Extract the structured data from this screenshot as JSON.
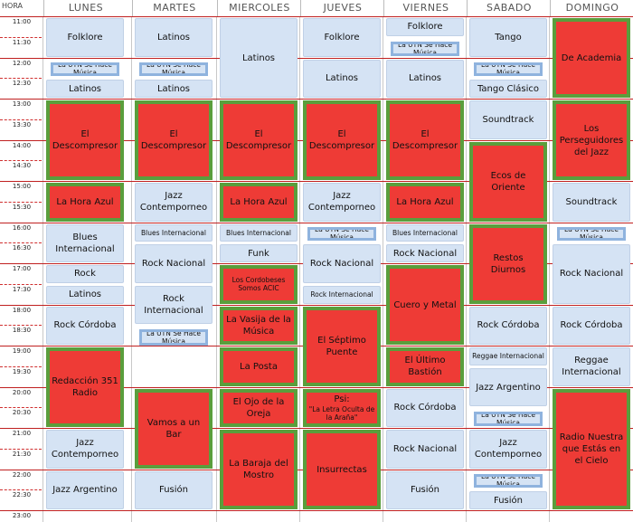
{
  "header": {
    "hora": "HORA",
    "days": [
      "LUNES",
      "MARTES",
      "MIERCOLES",
      "JUEVES",
      "VIERNES",
      "SABADO",
      "DOMINGO"
    ]
  },
  "times": [
    "11:00",
    "11:30",
    "12:00",
    "12:30",
    "13:00",
    "13:30",
    "14:00",
    "14:30",
    "15:00",
    "15:30",
    "16:00",
    "16:30",
    "17:00",
    "17:30",
    "18:00",
    "18:30",
    "19:00",
    "19:30",
    "20:00",
    "20:30",
    "21:00",
    "21:30",
    "22:00",
    "22:30",
    "23:00"
  ],
  "colors": {
    "show": "#d5e3f4",
    "feature": "#ee3b36",
    "frame": "#5a9e3c",
    "hour_line": "#c02020"
  },
  "programs": [
    {
      "day": 0,
      "start": 11.0,
      "end": 12.0,
      "label": "Folklore",
      "style": "blue"
    },
    {
      "day": 0,
      "start": 12.0,
      "end": 12.5,
      "label": "La UTN Se Hace Música",
      "style": "badge"
    },
    {
      "day": 0,
      "start": 12.5,
      "end": 13.0,
      "label": "Latinos",
      "style": "blue"
    },
    {
      "day": 0,
      "start": 13.0,
      "end": 15.0,
      "label": "El Descompresor",
      "style": "red"
    },
    {
      "day": 0,
      "start": 15.0,
      "end": 16.0,
      "label": "La Hora Azul",
      "style": "red"
    },
    {
      "day": 0,
      "start": 16.0,
      "end": 17.0,
      "label": "Blues Internacional",
      "style": "blue"
    },
    {
      "day": 0,
      "start": 17.0,
      "end": 17.5,
      "label": "Rock",
      "style": "blue"
    },
    {
      "day": 0,
      "start": 17.5,
      "end": 18.0,
      "label": "Latinos",
      "style": "blue"
    },
    {
      "day": 0,
      "start": 18.0,
      "end": 19.0,
      "label": "Rock Córdoba",
      "style": "blue"
    },
    {
      "day": 0,
      "start": 19.0,
      "end": 21.0,
      "label": "Redacción 351 Radio",
      "style": "red"
    },
    {
      "day": 0,
      "start": 21.0,
      "end": 22.0,
      "label": "Jazz Contemporneo",
      "style": "blue"
    },
    {
      "day": 0,
      "start": 22.0,
      "end": 23.0,
      "label": "Jazz Argentino",
      "style": "blue"
    },
    {
      "day": 1,
      "start": 11.0,
      "end": 12.0,
      "label": "Latinos",
      "style": "blue"
    },
    {
      "day": 1,
      "start": 12.0,
      "end": 12.5,
      "label": "La UTN Se Hace Música",
      "style": "badge"
    },
    {
      "day": 1,
      "start": 12.5,
      "end": 13.0,
      "label": "Latinos",
      "style": "blue"
    },
    {
      "day": 1,
      "start": 13.0,
      "end": 15.0,
      "label": "El Descompresor",
      "style": "red"
    },
    {
      "day": 1,
      "start": 15.0,
      "end": 16.0,
      "label": "Jazz Contemporneo",
      "style": "blue"
    },
    {
      "day": 1,
      "start": 16.0,
      "end": 16.5,
      "label": "Blues Internacional",
      "style": "blue",
      "small": true
    },
    {
      "day": 1,
      "start": 16.5,
      "end": 17.5,
      "label": "Rock Nacional",
      "style": "blue"
    },
    {
      "day": 1,
      "start": 17.5,
      "end": 18.5,
      "label": "Rock Internacional",
      "style": "blue"
    },
    {
      "day": 1,
      "start": 18.5,
      "end": 20.0,
      "label": "La UTN Se Hace Música",
      "style": "badge"
    },
    {
      "day": 1,
      "start": 20.0,
      "end": 22.0,
      "label": "Vamos a un Bar",
      "style": "red"
    },
    {
      "day": 1,
      "start": 22.0,
      "end": 23.0,
      "label": "Fusión",
      "style": "blue"
    },
    {
      "day": 2,
      "start": 11.0,
      "end": 13.0,
      "label": "Latinos",
      "style": "blue"
    },
    {
      "day": 2,
      "start": 13.0,
      "end": 15.0,
      "label": "El Descompresor",
      "style": "red"
    },
    {
      "day": 2,
      "start": 15.0,
      "end": 16.0,
      "label": "La Hora Azul",
      "style": "red"
    },
    {
      "day": 2,
      "start": 16.0,
      "end": 16.5,
      "label": "Blues Internacional",
      "style": "blue",
      "small": true
    },
    {
      "day": 2,
      "start": 16.5,
      "end": 17.0,
      "label": "Funk",
      "style": "blue"
    },
    {
      "day": 2,
      "start": 17.0,
      "end": 18.0,
      "label": "Los Cordobeses Somos ACIC",
      "style": "red",
      "small": true
    },
    {
      "day": 2,
      "start": 18.0,
      "end": 19.0,
      "label": "La Vasija de la Música",
      "style": "red"
    },
    {
      "day": 2,
      "start": 19.0,
      "end": 20.0,
      "label": "La Posta",
      "style": "red"
    },
    {
      "day": 2,
      "start": 20.0,
      "end": 21.0,
      "label": "El Ojo de la Oreja",
      "style": "red"
    },
    {
      "day": 2,
      "start": 21.0,
      "end": 23.0,
      "label": "La Baraja del Mostro",
      "style": "red"
    },
    {
      "day": 3,
      "start": 11.0,
      "end": 12.0,
      "label": "Folklore",
      "style": "blue"
    },
    {
      "day": 3,
      "start": 12.0,
      "end": 13.0,
      "label": "Latinos",
      "style": "blue"
    },
    {
      "day": 3,
      "start": 13.0,
      "end": 15.0,
      "label": "El Descompresor",
      "style": "red"
    },
    {
      "day": 3,
      "start": 15.0,
      "end": 16.0,
      "label": "Jazz Contemporneo",
      "style": "blue"
    },
    {
      "day": 3,
      "start": 16.0,
      "end": 16.5,
      "label": "La UTN Se Hace Música",
      "style": "badge"
    },
    {
      "day": 3,
      "start": 16.5,
      "end": 17.5,
      "label": "Rock Nacional",
      "style": "blue"
    },
    {
      "day": 3,
      "start": 17.5,
      "end": 18.0,
      "label": "Rock Internacional",
      "style": "blue",
      "small": true
    },
    {
      "day": 3,
      "start": 18.0,
      "end": 20.0,
      "label": "El Séptimo Puente",
      "style": "red"
    },
    {
      "day": 3,
      "start": 20.0,
      "end": 21.0,
      "label": "Psi:",
      "sub": "\"La Letra Oculta de la Araña\"",
      "style": "red"
    },
    {
      "day": 3,
      "start": 21.0,
      "end": 23.0,
      "label": "Insurrectas",
      "style": "red"
    },
    {
      "day": 4,
      "start": 11.0,
      "end": 11.5,
      "label": "Folklore",
      "style": "blue"
    },
    {
      "day": 4,
      "start": 11.5,
      "end": 12.0,
      "label": "La UTN Se Hace Música",
      "style": "badge"
    },
    {
      "day": 4,
      "start": 12.0,
      "end": 13.0,
      "label": "Latinos",
      "style": "blue"
    },
    {
      "day": 4,
      "start": 13.0,
      "end": 15.0,
      "label": "El Descompresor",
      "style": "red"
    },
    {
      "day": 4,
      "start": 15.0,
      "end": 16.0,
      "label": "La Hora Azul",
      "style": "red"
    },
    {
      "day": 4,
      "start": 16.0,
      "end": 16.5,
      "label": "Blues Internacional",
      "style": "blue",
      "small": true
    },
    {
      "day": 4,
      "start": 16.5,
      "end": 17.0,
      "label": "Rock Nacional",
      "style": "blue"
    },
    {
      "day": 4,
      "start": 17.0,
      "end": 19.0,
      "label": "Cuero y Metal",
      "style": "red"
    },
    {
      "day": 4,
      "start": 19.0,
      "end": 20.0,
      "label": "El Último Bastión",
      "style": "red"
    },
    {
      "day": 4,
      "start": 20.0,
      "end": 21.0,
      "label": "Rock Córdoba",
      "style": "blue"
    },
    {
      "day": 4,
      "start": 21.0,
      "end": 22.0,
      "label": "Rock Nacional",
      "style": "blue"
    },
    {
      "day": 4,
      "start": 22.0,
      "end": 23.0,
      "label": "Fusión",
      "style": "blue"
    },
    {
      "day": 5,
      "start": 11.0,
      "end": 12.0,
      "label": "Tango",
      "style": "blue"
    },
    {
      "day": 5,
      "start": 12.0,
      "end": 12.5,
      "label": "La UTN Se Hace Música",
      "style": "badge"
    },
    {
      "day": 5,
      "start": 12.5,
      "end": 13.0,
      "label": "Tango Clásico",
      "style": "blue"
    },
    {
      "day": 5,
      "start": 13.0,
      "end": 14.0,
      "label": "Soundtrack",
      "style": "blue"
    },
    {
      "day": 5,
      "start": 14.0,
      "end": 16.0,
      "label": "Ecos de Oriente",
      "style": "red"
    },
    {
      "day": 5,
      "start": 16.0,
      "end": 18.0,
      "label": "Restos Diurnos",
      "style": "red"
    },
    {
      "day": 5,
      "start": 18.0,
      "end": 19.0,
      "label": "Rock Córdoba",
      "style": "blue"
    },
    {
      "day": 5,
      "start": 19.0,
      "end": 19.5,
      "label": "Reggae Internacional",
      "style": "blue",
      "small": true
    },
    {
      "day": 5,
      "start": 19.5,
      "end": 20.5,
      "label": "Jazz Argentino",
      "style": "blue"
    },
    {
      "day": 5,
      "start": 20.5,
      "end": 21.0,
      "label": "La UTN Se Hace Música",
      "style": "badge"
    },
    {
      "day": 5,
      "start": 21.0,
      "end": 22.0,
      "label": "Jazz Contemporneo",
      "style": "blue"
    },
    {
      "day": 5,
      "start": 22.0,
      "end": 22.5,
      "label": "La UTN Se Hace Música",
      "style": "badge"
    },
    {
      "day": 5,
      "start": 22.5,
      "end": 23.0,
      "label": "Fusión",
      "style": "blue"
    },
    {
      "day": 6,
      "start": 11.0,
      "end": 13.0,
      "label": "De Academia",
      "style": "red"
    },
    {
      "day": 6,
      "start": 13.0,
      "end": 15.0,
      "label": "Los Perseguidores del Jazz",
      "style": "red"
    },
    {
      "day": 6,
      "start": 15.0,
      "end": 16.0,
      "label": "Soundtrack",
      "style": "blue"
    },
    {
      "day": 6,
      "start": 16.0,
      "end": 16.5,
      "label": "La UTN Se Hace Música",
      "style": "badge"
    },
    {
      "day": 6,
      "start": 16.5,
      "end": 18.0,
      "label": "Rock Nacional",
      "style": "blue"
    },
    {
      "day": 6,
      "start": 18.0,
      "end": 19.0,
      "label": "Rock Córdoba",
      "style": "blue"
    },
    {
      "day": 6,
      "start": 19.0,
      "end": 20.0,
      "label": "Reggae Internacional",
      "style": "blue"
    },
    {
      "day": 6,
      "start": 20.0,
      "end": 23.0,
      "label": "Radio Nuestra que Estás en el Cielo",
      "style": "red"
    }
  ]
}
